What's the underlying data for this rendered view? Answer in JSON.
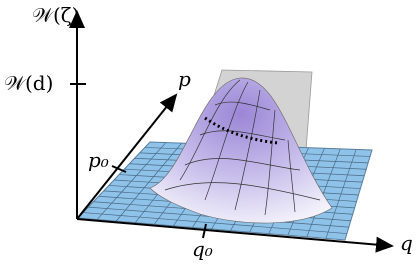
{
  "axes": {
    "vertical": {
      "label": "𝒲(ζ)",
      "tick": "𝒲(d)"
    },
    "p": {
      "label": "p",
      "tick": "p₀"
    },
    "q": {
      "label": "q",
      "tick": "q₀"
    }
  }
}
